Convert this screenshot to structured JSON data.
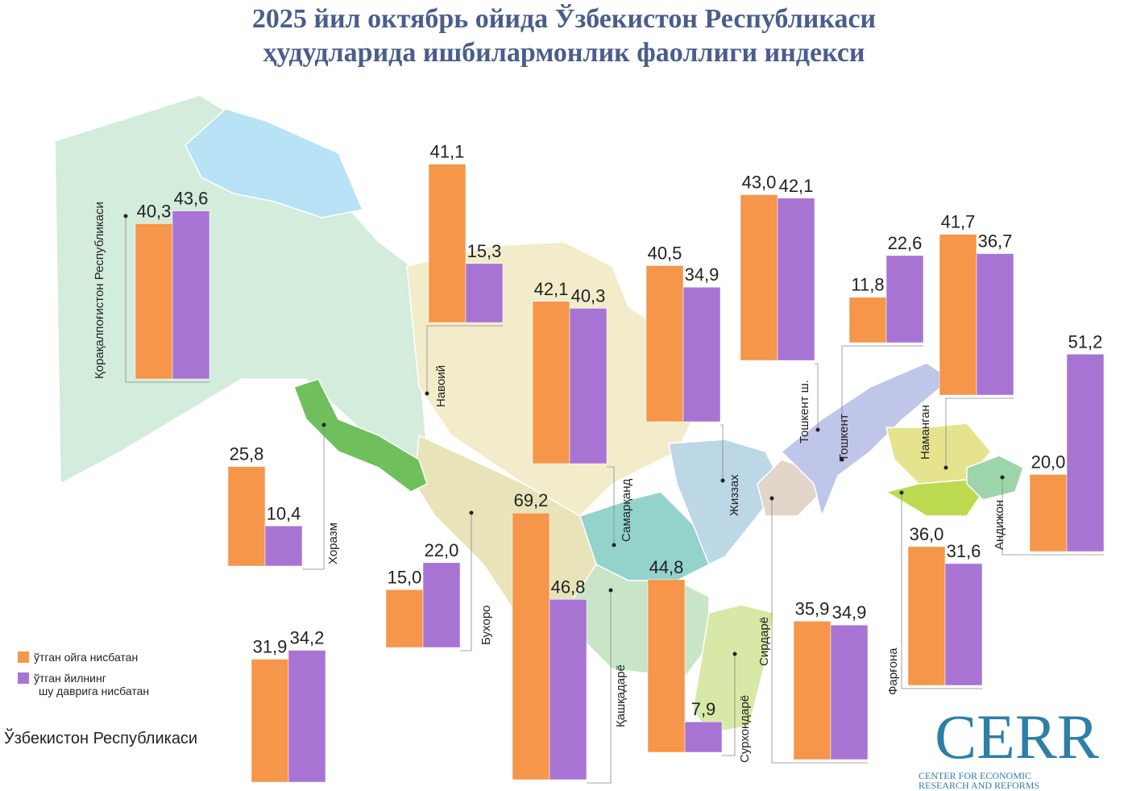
{
  "title": [
    "2025 йил октябрь ойида Ўзбекистон Республикаси",
    "ҳудудларида ишбилармонлик фаоллиги индекси"
  ],
  "legend": [
    {
      "name": "ўтган ойга нисбатан",
      "color": "#f5964a"
    },
    {
      "name": "ўтган йилнинг шу даврига нисбатан",
      "color": "#a874d4"
    }
  ],
  "regions": [
    {
      "name": "Қорақалпоғистон Республикаси",
      "values": [
        40.3,
        43.6
      ],
      "value_labels": [
        "40,3",
        "43,6"
      ]
    },
    {
      "name": "Навоий",
      "values": [
        41.1,
        15.3
      ],
      "value_labels": [
        "41,1",
        "15,3"
      ]
    },
    {
      "name": "Самарқанд",
      "values": [
        42.1,
        40.3
      ],
      "value_labels": [
        "42,1",
        "40,3"
      ]
    },
    {
      "name": "Жиззах",
      "values": [
        40.5,
        34.9
      ],
      "value_labels": [
        "40,5",
        "34,9"
      ]
    },
    {
      "name": "Тошкент ш.",
      "values": [
        43.0,
        42.1
      ],
      "value_labels": [
        "43,0",
        "42,1"
      ]
    },
    {
      "name": "Тошкент",
      "values": [
        11.8,
        22.6
      ],
      "value_labels": [
        "11,8",
        "22,6"
      ]
    },
    {
      "name": "Наманган",
      "values": [
        41.7,
        36.7
      ],
      "value_labels": [
        "41,7",
        "36,7"
      ]
    },
    {
      "name": "Андижон",
      "values": [
        20.0,
        51.2
      ],
      "value_labels": [
        "20,0",
        "51,2"
      ]
    },
    {
      "name": "Фарғона",
      "values": [
        36.0,
        31.6
      ],
      "value_labels": [
        "36,0",
        "31,6"
      ]
    },
    {
      "name": "Сирдарё",
      "values": [
        35.9,
        34.9
      ],
      "value_labels": [
        "35,9",
        "34,9"
      ]
    },
    {
      "name": "Сурхондарё",
      "values": [
        44.8,
        7.9
      ],
      "value_labels": [
        "44,8",
        "7,9"
      ]
    },
    {
      "name": "Қашқадарё",
      "values": [
        69.2,
        46.8
      ],
      "value_labels": [
        "69,2",
        "46,8"
      ]
    },
    {
      "name": "Бухоро",
      "values": [
        15.0,
        22.0
      ],
      "value_labels": [
        "15,0",
        "22,0"
      ]
    },
    {
      "name": "Хоразм",
      "values": [
        25.8,
        10.4
      ],
      "value_labels": [
        "25,8",
        "10,4"
      ]
    },
    {
      "name": "Ўзбекистон Республикаси",
      "values": [
        31.9,
        34.2
      ],
      "value_labels": [
        "31,9",
        "34,2"
      ]
    }
  ],
  "logo": {
    "name": "CERR",
    "lines": [
      "CENTER FOR ECONOMIC",
      "RESEARCH AND REFORMS"
    ]
  }
}
